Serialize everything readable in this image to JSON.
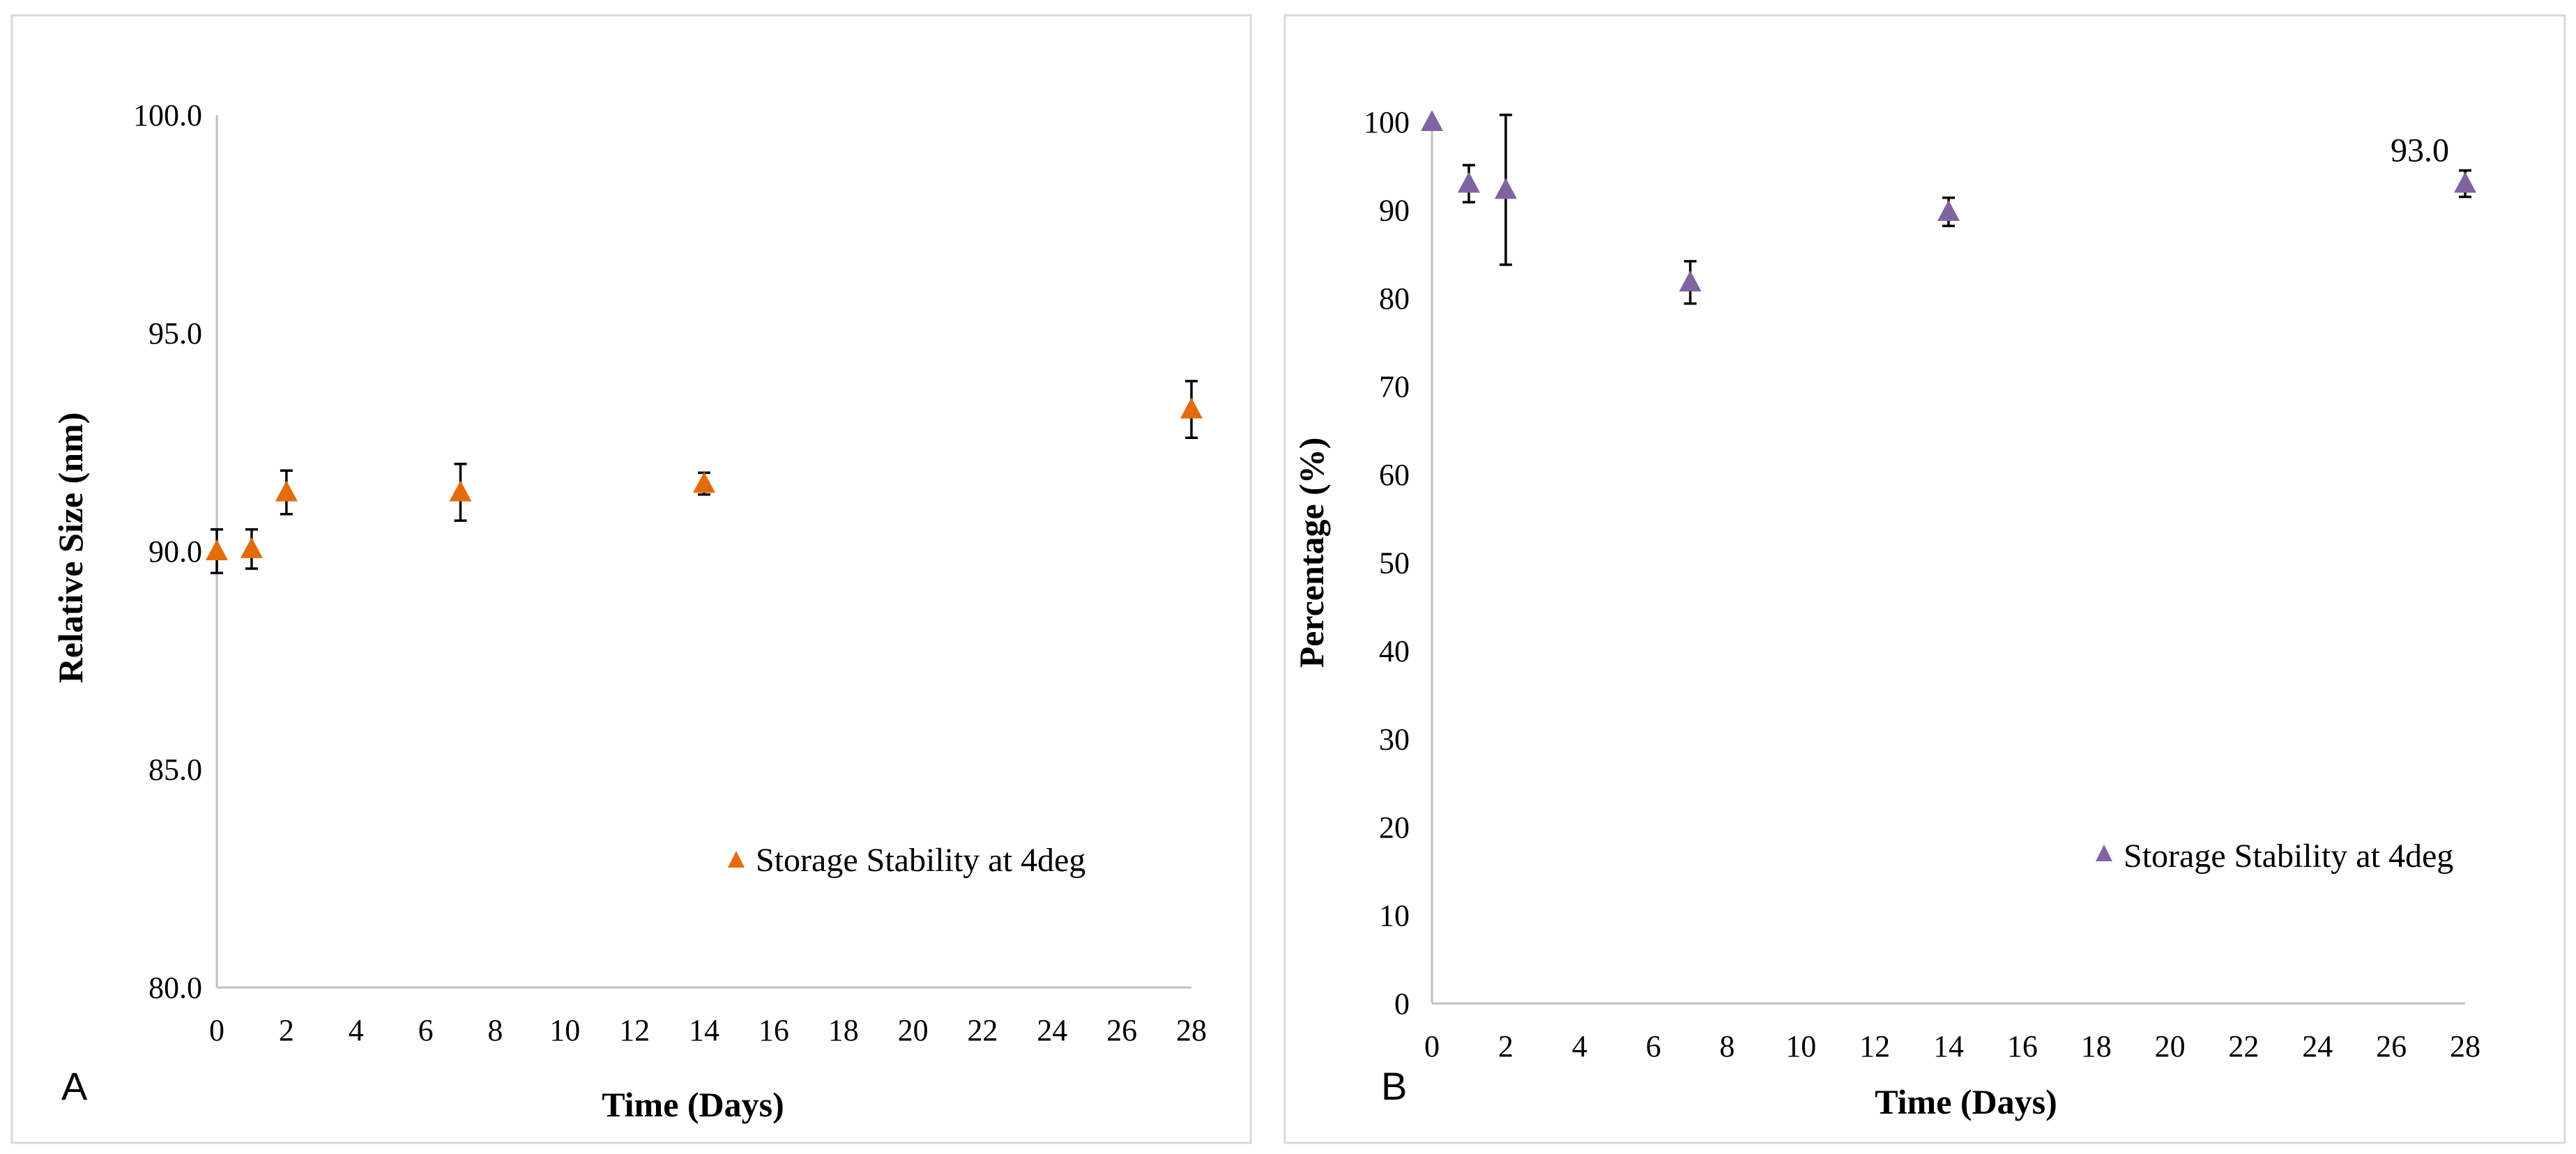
{
  "chart_data": [
    {
      "type": "scatter",
      "panel_label": "A",
      "xlabel": "Time (Days)",
      "ylabel": "Relative Size (nm)",
      "xlim": [
        0,
        28
      ],
      "x_ticks": [
        "0",
        "2",
        "4",
        "6",
        "8",
        "10",
        "12",
        "14",
        "16",
        "18",
        "20",
        "22",
        "24",
        "26",
        "28"
      ],
      "ylim": [
        80,
        100
      ],
      "y_ticks": [
        "80.0",
        "85.0",
        "90.0",
        "95.0",
        "100.0"
      ],
      "grid": false,
      "legend_position": "lower-right",
      "series": [
        {
          "name": "Storage Stability at 4deg",
          "color": "#E36C0A",
          "marker": "triangle",
          "x": [
            0,
            1,
            2,
            7,
            14,
            28
          ],
          "y": [
            90.0,
            90.05,
            91.35,
            91.35,
            91.55,
            93.25
          ],
          "error": [
            0.5,
            0.45,
            0.5,
            0.65,
            0.25,
            0.65
          ]
        }
      ]
    },
    {
      "type": "scatter",
      "panel_label": "B",
      "xlabel": "Time (Days)",
      "ylabel": "Percentage (%)",
      "xlim": [
        0,
        28
      ],
      "x_ticks": [
        "0",
        "2",
        "4",
        "6",
        "8",
        "10",
        "12",
        "14",
        "16",
        "18",
        "20",
        "22",
        "24",
        "26",
        "28"
      ],
      "ylim": [
        0,
        100
      ],
      "y_ticks": [
        "0",
        "10",
        "20",
        "30",
        "40",
        "50",
        "60",
        "70",
        "80",
        "90",
        "100"
      ],
      "grid": false,
      "legend_position": "lower-right",
      "annotations": [
        {
          "x": 28,
          "y": 93.0,
          "text": "93.0"
        }
      ],
      "series": [
        {
          "name": "Storage Stability at 4deg",
          "color": "#8064A2",
          "marker": "triangle",
          "x": [
            0,
            1,
            2,
            7,
            14,
            28
          ],
          "y": [
            100,
            93,
            92.3,
            81.8,
            89.8,
            93.0
          ],
          "error": [
            0,
            2.1,
            8.5,
            2.4,
            1.6,
            1.5
          ]
        }
      ]
    }
  ]
}
